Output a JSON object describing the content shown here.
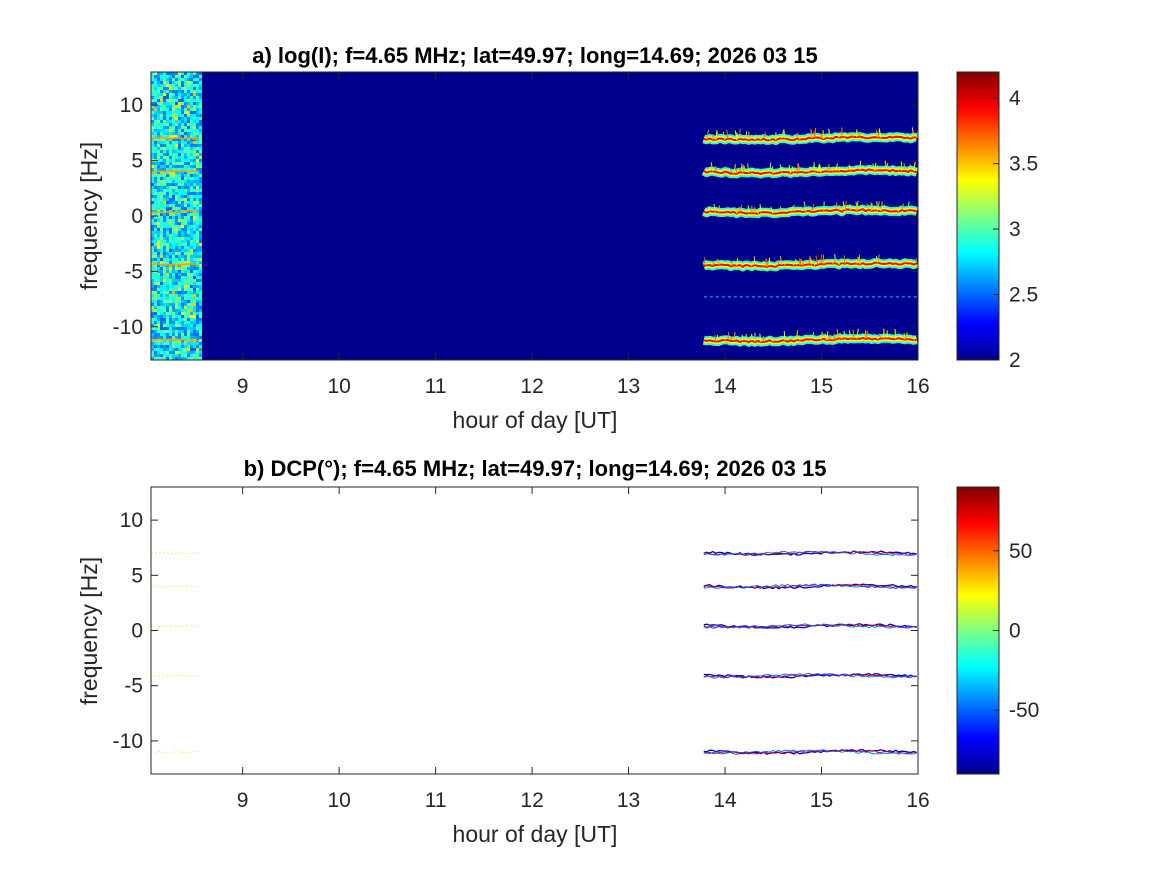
{
  "chart_data": [
    {
      "panel": "a",
      "type": "heatmap",
      "title": "a) log(I); f=4.65 MHz;  lat=49.97; long=14.69; 2026 03 15",
      "xlabel": "hour of day [UT]",
      "ylabel": "frequency [Hz]",
      "xlim": [
        8.05,
        16.0
      ],
      "ylim": [
        -13,
        13
      ],
      "xticks": [
        9,
        10,
        11,
        12,
        13,
        14,
        15,
        16
      ],
      "yticks": [
        10,
        5,
        0,
        -5,
        -10
      ],
      "colorbar": {
        "range": [
          2,
          4.2
        ],
        "ticks": [
          4,
          3.5,
          3,
          2.5,
          2
        ],
        "colormap": "jet"
      },
      "background_color": "#00008f",
      "segments": [
        {
          "x_start": 8.05,
          "x_end": 8.55,
          "kind": "noisy"
        },
        {
          "x_start": 13.78,
          "x_end": 16.0,
          "kind": "lines"
        }
      ],
      "line_frequencies": [
        7.0,
        4.0,
        0.4,
        -4.4,
        -11.2
      ],
      "faint_line_frequency": -7.3
    },
    {
      "panel": "b",
      "type": "heatmap",
      "title": "b) DCP(°); f=4.65 MHz;  lat=49.97; long=14.69; 2026 03 15",
      "xlabel": "hour of day [UT]",
      "ylabel": "frequency [Hz]",
      "xlim": [
        8.05,
        16.0
      ],
      "ylim": [
        -13,
        13
      ],
      "xticks": [
        9,
        10,
        11,
        12,
        13,
        14,
        15,
        16
      ],
      "yticks": [
        10,
        5,
        0,
        -5,
        -10
      ],
      "colorbar": {
        "range": [
          -90,
          90
        ],
        "ticks": [
          50,
          0,
          -50
        ],
        "colormap": "jet"
      },
      "background_color": "#ffffff",
      "segments": [
        {
          "x_start": 8.05,
          "x_end": 8.55,
          "kind": "faint"
        },
        {
          "x_start": 13.78,
          "x_end": 16.0,
          "kind": "lines"
        }
      ],
      "line_frequencies": [
        7.0,
        4.0,
        0.4,
        -4.1,
        -11.0
      ]
    }
  ]
}
